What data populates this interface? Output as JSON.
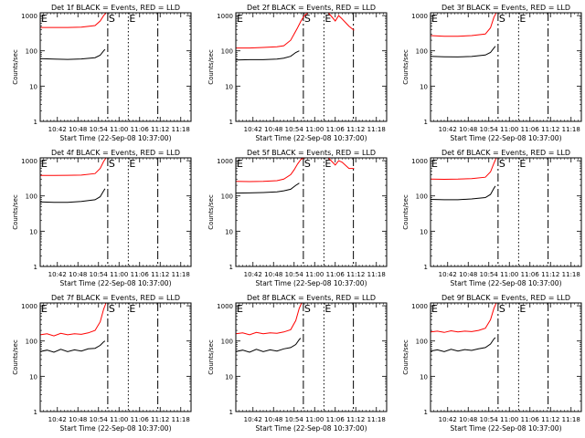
{
  "figure": {
    "background": "#ffffff",
    "axis_color": "#000000",
    "events_color": "#000000",
    "lld_color": "#ff0000"
  },
  "chart_data": [
    {
      "type": "line",
      "title": "Det 1f BLACK = Events, RED = LLD",
      "xlabel": "Start Time (22-Sep-08 10:37:00)",
      "ylabel": "Counts/sec",
      "x_ticks": [
        "10:42",
        "10:48",
        "10:54",
        "11:00",
        "11:06",
        "11:12",
        "11:18"
      ],
      "x_tick_minutes": [
        5,
        11,
        17,
        23,
        29,
        35,
        41
      ],
      "xlim": [
        0,
        44
      ],
      "yscale": "log",
      "ylim": [
        1,
        1200
      ],
      "y_ticks": [
        "1",
        "10",
        "100",
        "1000"
      ],
      "markers": [
        {
          "label": "E",
          "minute": 0,
          "style": "solid"
        },
        {
          "label": "S",
          "minute": 19.7,
          "style": "dashdot"
        },
        {
          "label": "E",
          "minute": 25.7,
          "style": "dotted"
        },
        {
          "label": "",
          "minute": 34.3,
          "style": "dashdot"
        }
      ],
      "series": [
        {
          "name": "Events",
          "x": [
            0,
            4,
            8,
            12,
            16,
            17.5,
            18.5,
            18.9
          ],
          "values": [
            60,
            58,
            57,
            59,
            64,
            75,
            100,
            110
          ]
        },
        {
          "name": "LLD",
          "x": [
            0,
            4,
            8,
            12,
            16,
            17.5,
            18.5,
            19.2
          ],
          "values": [
            460,
            460,
            460,
            470,
            520,
            700,
            1000,
            1200
          ]
        }
      ]
    },
    {
      "type": "line",
      "title": "Det 2f BLACK = Events, RED = LLD",
      "xlabel": "Start Time (22-Sep-08 10:37:00)",
      "ylabel": "Counts/sec",
      "x_ticks": [
        "10:42",
        "10:48",
        "10:54",
        "11:00",
        "11:06",
        "11:12",
        "11:18"
      ],
      "x_tick_minutes": [
        5,
        11,
        17,
        23,
        29,
        35,
        41
      ],
      "xlim": [
        0,
        44
      ],
      "yscale": "log",
      "ylim": [
        1,
        1200
      ],
      "y_ticks": [
        "1",
        "10",
        "100",
        "1000"
      ],
      "markers": [
        {
          "label": "E",
          "minute": 0,
          "style": "solid"
        },
        {
          "label": "S",
          "minute": 19.7,
          "style": "dashdot"
        },
        {
          "label": "E",
          "minute": 25.7,
          "style": "dotted"
        },
        {
          "label": "",
          "minute": 34.3,
          "style": "dashdot"
        }
      ],
      "series": [
        {
          "name": "Events",
          "x": [
            0,
            4,
            8,
            12,
            14,
            16,
            17.5,
            18.5
          ],
          "values": [
            55,
            56,
            56,
            58,
            62,
            70,
            90,
            100
          ]
        },
        {
          "name": "LLD",
          "x": [
            0,
            4,
            8,
            12,
            14,
            16,
            17,
            18,
            19,
            20,
            21,
            22,
            27,
            29,
            30,
            31,
            33,
            34.5
          ],
          "values": [
            120,
            120,
            125,
            130,
            140,
            200,
            300,
            450,
            700,
            1000,
            1200,
            1200,
            1200,
            700,
            1000,
            800,
            500,
            380
          ]
        }
      ]
    },
    {
      "type": "line",
      "title": "Det 3f BLACK = Events, RED = LLD",
      "xlabel": "Start Time (22-Sep-08 10:37:00)",
      "ylabel": "Counts/sec",
      "x_ticks": [
        "10:42",
        "10:48",
        "10:54",
        "11:00",
        "11:06",
        "11:12",
        "11:18"
      ],
      "x_tick_minutes": [
        5,
        11,
        17,
        23,
        29,
        35,
        41
      ],
      "xlim": [
        0,
        44
      ],
      "yscale": "log",
      "ylim": [
        1,
        1200
      ],
      "y_ticks": [
        "1",
        "10",
        "100",
        "1000"
      ],
      "markers": [
        {
          "label": "E",
          "minute": 0,
          "style": "solid"
        },
        {
          "label": "S",
          "minute": 19.7,
          "style": "dashdot"
        },
        {
          "label": "E",
          "minute": 25.7,
          "style": "dotted"
        },
        {
          "label": "",
          "minute": 34.3,
          "style": "dashdot"
        }
      ],
      "series": [
        {
          "name": "Events",
          "x": [
            0,
            4,
            8,
            12,
            16,
            17.5,
            18.5,
            18.9
          ],
          "values": [
            70,
            68,
            67,
            69,
            76,
            90,
            120,
            135
          ]
        },
        {
          "name": "LLD",
          "x": [
            0,
            4,
            8,
            12,
            16,
            17.5,
            18.5,
            19.2
          ],
          "values": [
            270,
            260,
            260,
            270,
            300,
            450,
            900,
            1200
          ]
        }
      ]
    },
    {
      "type": "line",
      "title": "Det 4f BLACK = Events, RED = LLD",
      "xlabel": "Start Time (22-Sep-08 10:37:00)",
      "ylabel": "Counts/sec",
      "x_ticks": [
        "10:42",
        "10:48",
        "10:54",
        "11:00",
        "11:06",
        "11:12",
        "11:18"
      ],
      "x_tick_minutes": [
        5,
        11,
        17,
        23,
        29,
        35,
        41
      ],
      "xlim": [
        0,
        44
      ],
      "yscale": "log",
      "ylim": [
        1,
        1200
      ],
      "y_ticks": [
        "1",
        "10",
        "100",
        "1000"
      ],
      "markers": [
        {
          "label": "E",
          "minute": 0,
          "style": "solid"
        },
        {
          "label": "S",
          "minute": 19.7,
          "style": "dashdot"
        },
        {
          "label": "E",
          "minute": 25.7,
          "style": "dotted"
        },
        {
          "label": "",
          "minute": 34.3,
          "style": "dashdot"
        }
      ],
      "series": [
        {
          "name": "Events",
          "x": [
            0,
            4,
            8,
            12,
            16,
            17.5,
            18.5,
            18.9
          ],
          "values": [
            68,
            66,
            66,
            70,
            78,
            95,
            140,
            160
          ]
        },
        {
          "name": "LLD",
          "x": [
            0,
            4,
            8,
            12,
            16,
            17.5,
            18.5,
            19.2
          ],
          "values": [
            380,
            380,
            385,
            390,
            430,
            600,
            950,
            1200
          ]
        }
      ]
    },
    {
      "type": "line",
      "title": "Det 5f BLACK = Events, RED = LLD",
      "xlabel": "Start Time (22-Sep-08 10:37:00)",
      "ylabel": "Counts/sec",
      "x_ticks": [
        "10:42",
        "10:48",
        "10:54",
        "11:00",
        "11:06",
        "11:12",
        "11:18"
      ],
      "x_tick_minutes": [
        5,
        11,
        17,
        23,
        29,
        35,
        41
      ],
      "xlim": [
        0,
        44
      ],
      "yscale": "log",
      "ylim": [
        1,
        1200
      ],
      "y_ticks": [
        "1",
        "10",
        "100",
        "1000"
      ],
      "markers": [
        {
          "label": "E",
          "minute": 0,
          "style": "solid"
        },
        {
          "label": "S",
          "minute": 19.7,
          "style": "dashdot"
        },
        {
          "label": "E",
          "minute": 25.7,
          "style": "dotted"
        },
        {
          "label": "",
          "minute": 34.3,
          "style": "dashdot"
        }
      ],
      "series": [
        {
          "name": "Events",
          "x": [
            0,
            4,
            8,
            12,
            14,
            16,
            17.5,
            18.5
          ],
          "values": [
            120,
            122,
            125,
            130,
            140,
            155,
            200,
            230
          ]
        },
        {
          "name": "LLD",
          "x": [
            0,
            4,
            8,
            12,
            14,
            16,
            17,
            18,
            19,
            20,
            21,
            22,
            27,
            29,
            30,
            31,
            33,
            34.5
          ],
          "values": [
            260,
            255,
            260,
            270,
            300,
            400,
            550,
            800,
            1100,
            1200,
            1200,
            1200,
            1200,
            750,
            1000,
            900,
            600,
            600
          ]
        }
      ]
    },
    {
      "type": "line",
      "title": "Det 6f BLACK = Events, RED = LLD",
      "xlabel": "Start Time (22-Sep-08 10:37:00)",
      "ylabel": "Counts/sec",
      "x_ticks": [
        "10:42",
        "10:48",
        "10:54",
        "11:00",
        "11:06",
        "11:12",
        "11:18"
      ],
      "x_tick_minutes": [
        5,
        11,
        17,
        23,
        29,
        35,
        41
      ],
      "xlim": [
        0,
        44
      ],
      "yscale": "log",
      "ylim": [
        1,
        1200
      ],
      "y_ticks": [
        "1",
        "10",
        "100",
        "1000"
      ],
      "markers": [
        {
          "label": "E",
          "minute": 0,
          "style": "solid"
        },
        {
          "label": "S",
          "minute": 19.7,
          "style": "dashdot"
        },
        {
          "label": "E",
          "minute": 25.7,
          "style": "dotted"
        },
        {
          "label": "",
          "minute": 34.3,
          "style": "dashdot"
        }
      ],
      "series": [
        {
          "name": "Events",
          "x": [
            0,
            4,
            8,
            12,
            16,
            17.5,
            18.5,
            18.9
          ],
          "values": [
            80,
            78,
            78,
            82,
            90,
            110,
            165,
            190
          ]
        },
        {
          "name": "LLD",
          "x": [
            0,
            4,
            8,
            12,
            16,
            17.5,
            18.5,
            19.2
          ],
          "values": [
            300,
            295,
            300,
            310,
            340,
            480,
            850,
            1200
          ]
        }
      ]
    },
    {
      "type": "line",
      "title": "Det 7f BLACK = Events, RED = LLD",
      "xlabel": "Start Time (22-Sep-08 10:37:00)",
      "ylabel": "Counts/sec",
      "x_ticks": [
        "10:42",
        "10:48",
        "10:54",
        "11:00",
        "11:06",
        "11:12",
        "11:18"
      ],
      "x_tick_minutes": [
        5,
        11,
        17,
        23,
        29,
        35,
        41
      ],
      "xlim": [
        0,
        44
      ],
      "yscale": "log",
      "ylim": [
        1,
        1200
      ],
      "y_ticks": [
        "1",
        "10",
        "100",
        "1000"
      ],
      "markers": [
        {
          "label": "E",
          "minute": 0,
          "style": "solid"
        },
        {
          "label": "S",
          "minute": 19.7,
          "style": "dashdot"
        },
        {
          "label": "E",
          "minute": 25.7,
          "style": "dotted"
        },
        {
          "label": "",
          "minute": 34.3,
          "style": "dashdot"
        }
      ],
      "series": [
        {
          "name": "Events",
          "x": [
            0,
            2,
            4,
            6,
            8,
            10,
            12,
            14,
            16,
            17.5,
            18.5,
            18.9
          ],
          "values": [
            50,
            55,
            48,
            58,
            50,
            56,
            52,
            60,
            62,
            75,
            95,
            100
          ]
        },
        {
          "name": "LLD",
          "x": [
            0,
            2,
            4,
            6,
            8,
            10,
            12,
            14,
            16,
            17.5,
            18.5,
            19.2
          ],
          "values": [
            150,
            160,
            140,
            165,
            150,
            160,
            155,
            170,
            200,
            350,
            800,
            1200
          ]
        }
      ]
    },
    {
      "type": "line",
      "title": "Det 8f BLACK = Events, RED = LLD",
      "xlabel": "Start Time (22-Sep-08 10:37:00)",
      "ylabel": "Counts/sec",
      "x_ticks": [
        "10:42",
        "10:48",
        "10:54",
        "11:00",
        "11:06",
        "11:12",
        "11:18"
      ],
      "x_tick_minutes": [
        5,
        11,
        17,
        23,
        29,
        35,
        41
      ],
      "xlim": [
        0,
        44
      ],
      "yscale": "log",
      "ylim": [
        1,
        1200
      ],
      "y_ticks": [
        "1",
        "10",
        "100",
        "1000"
      ],
      "markers": [
        {
          "label": "E",
          "minute": 0,
          "style": "solid"
        },
        {
          "label": "S",
          "minute": 19.7,
          "style": "dashdot"
        },
        {
          "label": "E",
          "minute": 25.7,
          "style": "dotted"
        },
        {
          "label": "",
          "minute": 34.3,
          "style": "dashdot"
        }
      ],
      "series": [
        {
          "name": "Events",
          "x": [
            0,
            2,
            4,
            6,
            8,
            10,
            12,
            14,
            16,
            17.5,
            18.5,
            18.9
          ],
          "values": [
            50,
            55,
            48,
            58,
            50,
            56,
            52,
            60,
            65,
            80,
            110,
            120
          ]
        },
        {
          "name": "LLD",
          "x": [
            0,
            2,
            4,
            6,
            8,
            10,
            12,
            14,
            16,
            17.5,
            18.5,
            19.2
          ],
          "values": [
            160,
            170,
            150,
            175,
            160,
            170,
            165,
            180,
            210,
            380,
            850,
            1200
          ]
        }
      ]
    },
    {
      "type": "line",
      "title": "Det 9f BLACK = Events, RED = LLD",
      "xlabel": "Start Time (22-Sep-08 10:37:00)",
      "ylabel": "Counts/sec",
      "x_ticks": [
        "10:42",
        "10:48",
        "10:54",
        "11:00",
        "11:06",
        "11:12",
        "11:18"
      ],
      "x_tick_minutes": [
        5,
        11,
        17,
        23,
        29,
        35,
        41
      ],
      "xlim": [
        0,
        44
      ],
      "yscale": "log",
      "ylim": [
        1,
        1200
      ],
      "y_ticks": [
        "1",
        "10",
        "100",
        "1000"
      ],
      "markers": [
        {
          "label": "E",
          "minute": 0,
          "style": "solid"
        },
        {
          "label": "S",
          "minute": 19.7,
          "style": "dashdot"
        },
        {
          "label": "E",
          "minute": 25.7,
          "style": "dotted"
        },
        {
          "label": "",
          "minute": 34.3,
          "style": "dashdot"
        }
      ],
      "series": [
        {
          "name": "Events",
          "x": [
            0,
            2,
            4,
            6,
            8,
            10,
            12,
            14,
            16,
            17.5,
            18.5,
            18.9
          ],
          "values": [
            52,
            56,
            50,
            58,
            52,
            57,
            54,
            60,
            65,
            82,
            115,
            125
          ]
        },
        {
          "name": "LLD",
          "x": [
            0,
            2,
            4,
            6,
            8,
            10,
            12,
            14,
            16,
            17.5,
            18.5,
            19.2
          ],
          "values": [
            180,
            190,
            175,
            195,
            180,
            190,
            185,
            200,
            230,
            400,
            850,
            1200
          ]
        }
      ]
    }
  ]
}
